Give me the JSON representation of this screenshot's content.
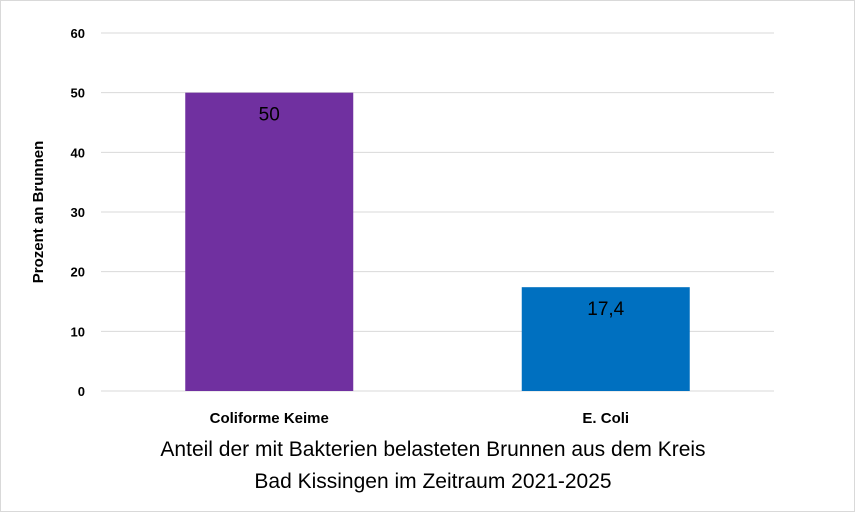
{
  "chart_data": {
    "type": "bar",
    "categories": [
      "Coliforme Keime",
      "E. Coli"
    ],
    "values": [
      50,
      17.4
    ],
    "data_labels": [
      "50",
      "17,4"
    ],
    "colors": [
      "#7030A0",
      "#0070C0"
    ],
    "title_lines": [
      "Anteil der mit Bakterien belasteten Brunnen aus dem Kreis",
      "Bad Kissingen im Zeitraum 2021-2025"
    ],
    "xlabel": "",
    "ylabel": "Prozent an Brunnen",
    "ylim": [
      0,
      60
    ],
    "yticks": [
      "0",
      "10",
      "20",
      "30",
      "40",
      "50",
      "60"
    ],
    "grid": true,
    "title_position": "bottom"
  }
}
